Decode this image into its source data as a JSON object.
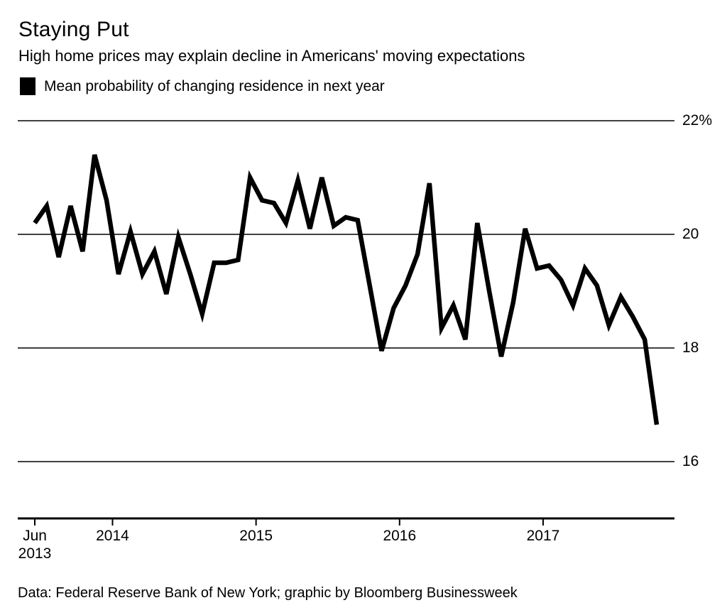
{
  "header": {
    "title": "Staying Put",
    "subtitle": "High home prices may explain decline in Americans' moving expectations"
  },
  "legend": {
    "swatch_color": "#000000",
    "label": "Mean probability of changing residence in next year"
  },
  "footer": {
    "source": "Data: Federal Reserve Bank of New York; graphic by Bloomberg Businessweek"
  },
  "chart_data": {
    "type": "line",
    "title": "Staying Put",
    "series_name": "Mean probability of changing residence in next year",
    "unit": "%",
    "line_color": "#000000",
    "grid": true,
    "legend_position": "top-left",
    "ylim": [
      15.2,
      22
    ],
    "x": [
      "Jun 2013",
      "Jul 2013",
      "Aug 2013",
      "Sep 2013",
      "Oct 2013",
      "Nov 2013",
      "Dec 2013",
      "Jan 2014",
      "Feb 2014",
      "Mar 2014",
      "Apr 2014",
      "May 2014",
      "Jun 2014",
      "Jul 2014",
      "Aug 2014",
      "Sep 2014",
      "Oct 2014",
      "Nov 2014",
      "Dec 2014",
      "Jan 2015",
      "Feb 2015",
      "Mar 2015",
      "Apr 2015",
      "May 2015",
      "Jun 2015",
      "Jul 2015",
      "Aug 2015",
      "Sep 2015",
      "Oct 2015",
      "Nov 2015",
      "Dec 2015",
      "Jan 2016",
      "Feb 2016",
      "Mar 2016",
      "Apr 2016",
      "May 2016",
      "Jun 2016",
      "Jul 2016",
      "Aug 2016",
      "Sep 2016",
      "Oct 2016",
      "Nov 2016",
      "Dec 2016",
      "Jan 2017",
      "Feb 2017",
      "Mar 2017",
      "Apr 2017",
      "May 2017",
      "Jun 2017",
      "Jul 2017",
      "Aug 2017",
      "Sep 2017",
      "Oct 2017"
    ],
    "values": [
      20.2,
      20.5,
      19.6,
      20.5,
      19.7,
      21.4,
      20.6,
      19.3,
      20.05,
      19.3,
      19.7,
      18.95,
      19.95,
      19.3,
      18.6,
      19.5,
      19.5,
      19.55,
      21.0,
      20.6,
      20.55,
      20.2,
      20.95,
      20.1,
      21.0,
      20.15,
      20.3,
      20.25,
      19.1,
      17.95,
      18.7,
      19.1,
      19.65,
      20.9,
      18.35,
      18.75,
      18.15,
      20.2,
      19.0,
      17.85,
      18.8,
      20.1,
      19.4,
      19.45,
      19.2,
      18.75,
      19.4,
      19.1,
      18.4,
      18.9,
      18.55,
      18.15,
      16.65
    ],
    "yticks": [
      {
        "label": "22%",
        "value": 22
      },
      {
        "label": "20",
        "value": 20
      },
      {
        "label": "18",
        "value": 18
      },
      {
        "label": "16",
        "value": 16
      }
    ],
    "xticks": [
      {
        "text": "Jun\n2013",
        "month_index": 0
      },
      {
        "text": "2014",
        "month_index": 6.5
      },
      {
        "text": "2015",
        "month_index": 18.5
      },
      {
        "text": "2016",
        "month_index": 30.5
      },
      {
        "text": "2017",
        "month_index": 42.5
      }
    ]
  }
}
